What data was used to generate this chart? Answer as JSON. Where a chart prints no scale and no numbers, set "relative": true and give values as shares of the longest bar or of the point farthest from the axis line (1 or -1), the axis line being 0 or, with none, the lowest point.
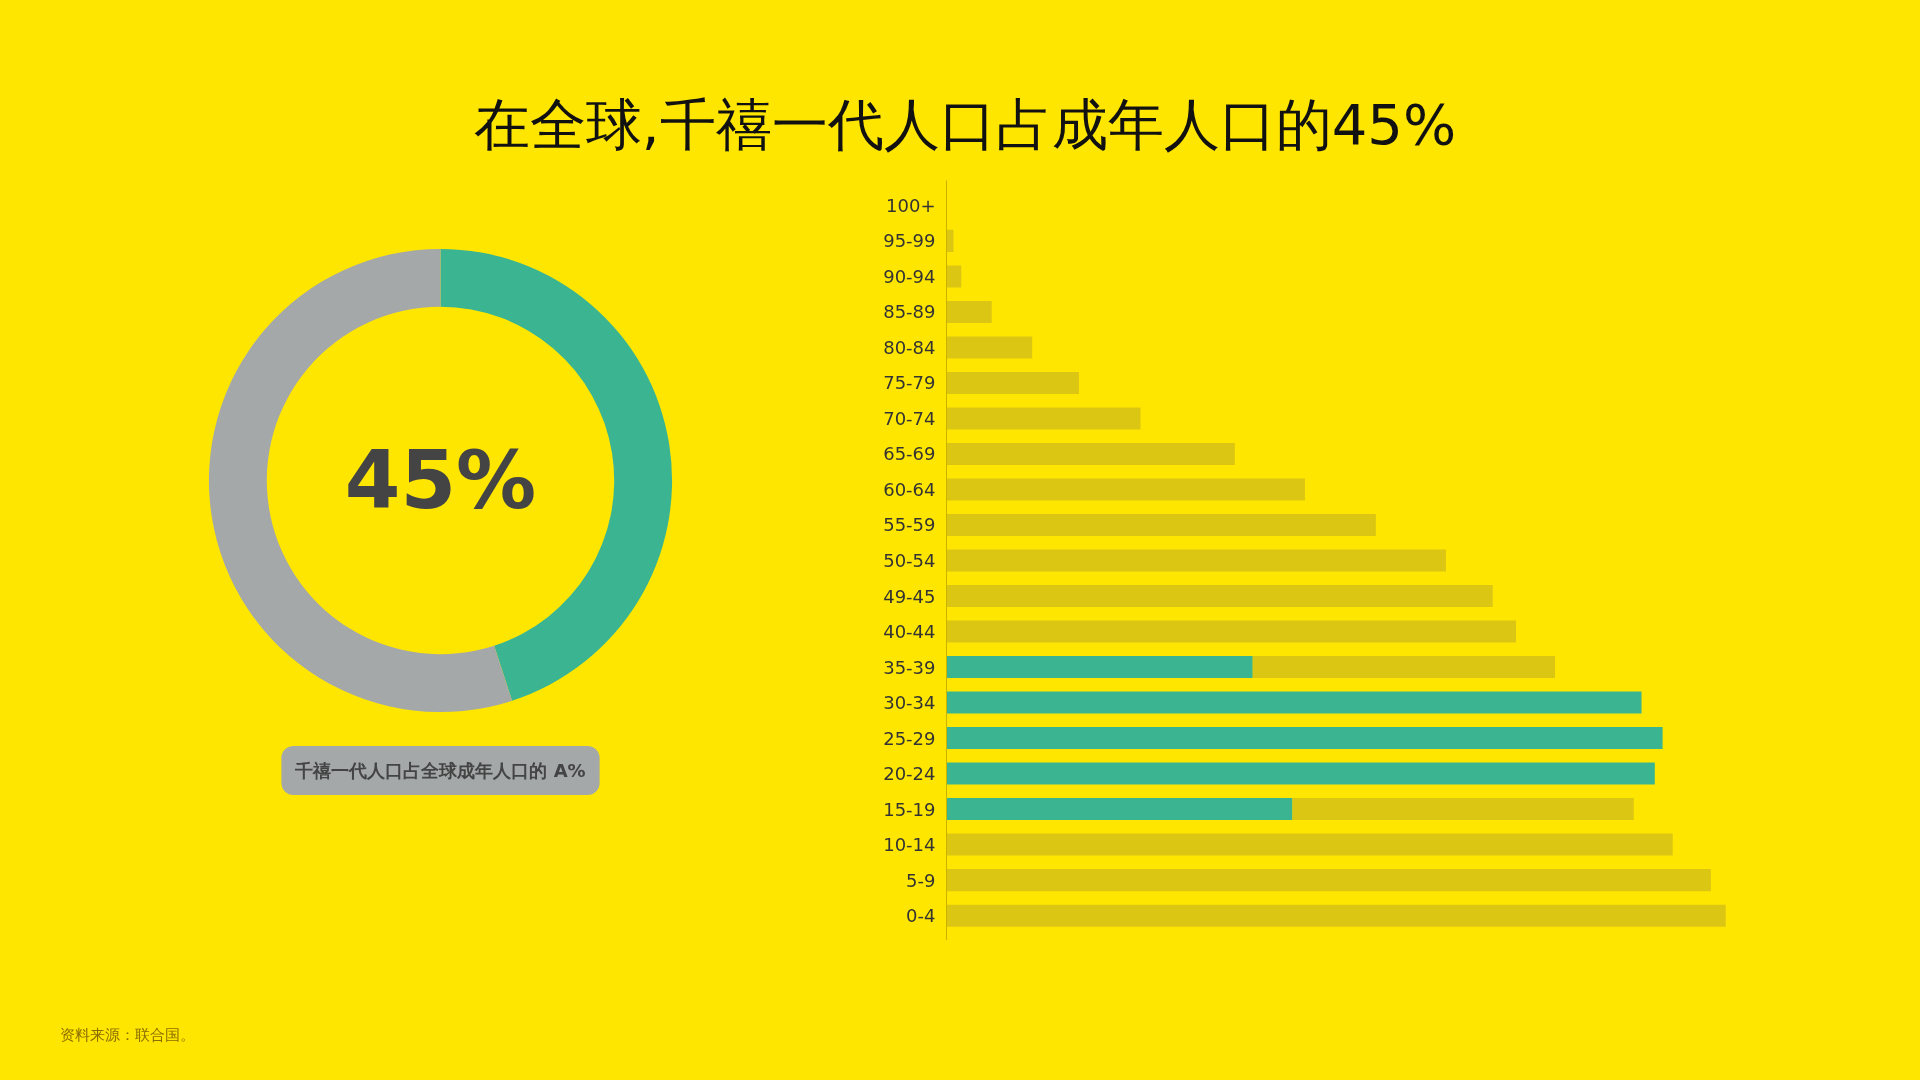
{
  "chart_data": [
    {
      "type": "donut",
      "title": "在全球,千禧一代人口占成年人口的45%",
      "categories": [
        null,
        null
      ],
      "values": [
        45,
        55
      ],
      "colors": [
        "#3bb591",
        "#a5a8a8"
      ],
      "annotations": [
        "45%",
        "千禧一代人口占全球成年人口的 A%"
      ]
    },
    {
      "type": "bar",
      "orientation": "horizontal",
      "stacked": true,
      "relative": true,
      "categories": [
        "100+",
        "95-99",
        "90-94",
        "85-89",
        "80-84",
        "75-79",
        "70-74",
        "65-69",
        "60-64",
        "55-59",
        "50-54",
        "49-45",
        "40-44",
        "35-39",
        "30-34",
        "25-29",
        "20-24",
        "15-19",
        "10-14",
        "5-9",
        "0-4"
      ],
      "series": [
        {
          "color": "#3bb591",
          "values": [
            null,
            null,
            null,
            null,
            null,
            null,
            null,
            null,
            null,
            null,
            null,
            null,
            null,
            0.393,
            0.892,
            0.919,
            0.909,
            0.444,
            null,
            null,
            null
          ]
        },
        {
          "color": "#dcc614",
          "values": [
            null,
            0.009,
            0.019,
            0.058,
            0.11,
            0.17,
            0.249,
            0.37,
            0.46,
            0.551,
            0.641,
            0.701,
            0.731,
            0.388,
            null,
            null,
            null,
            0.438,
            0.932,
            0.981,
            1.0
          ]
        }
      ],
      "annotations": [
        "资料来源：联合国。"
      ]
    }
  ]
}
